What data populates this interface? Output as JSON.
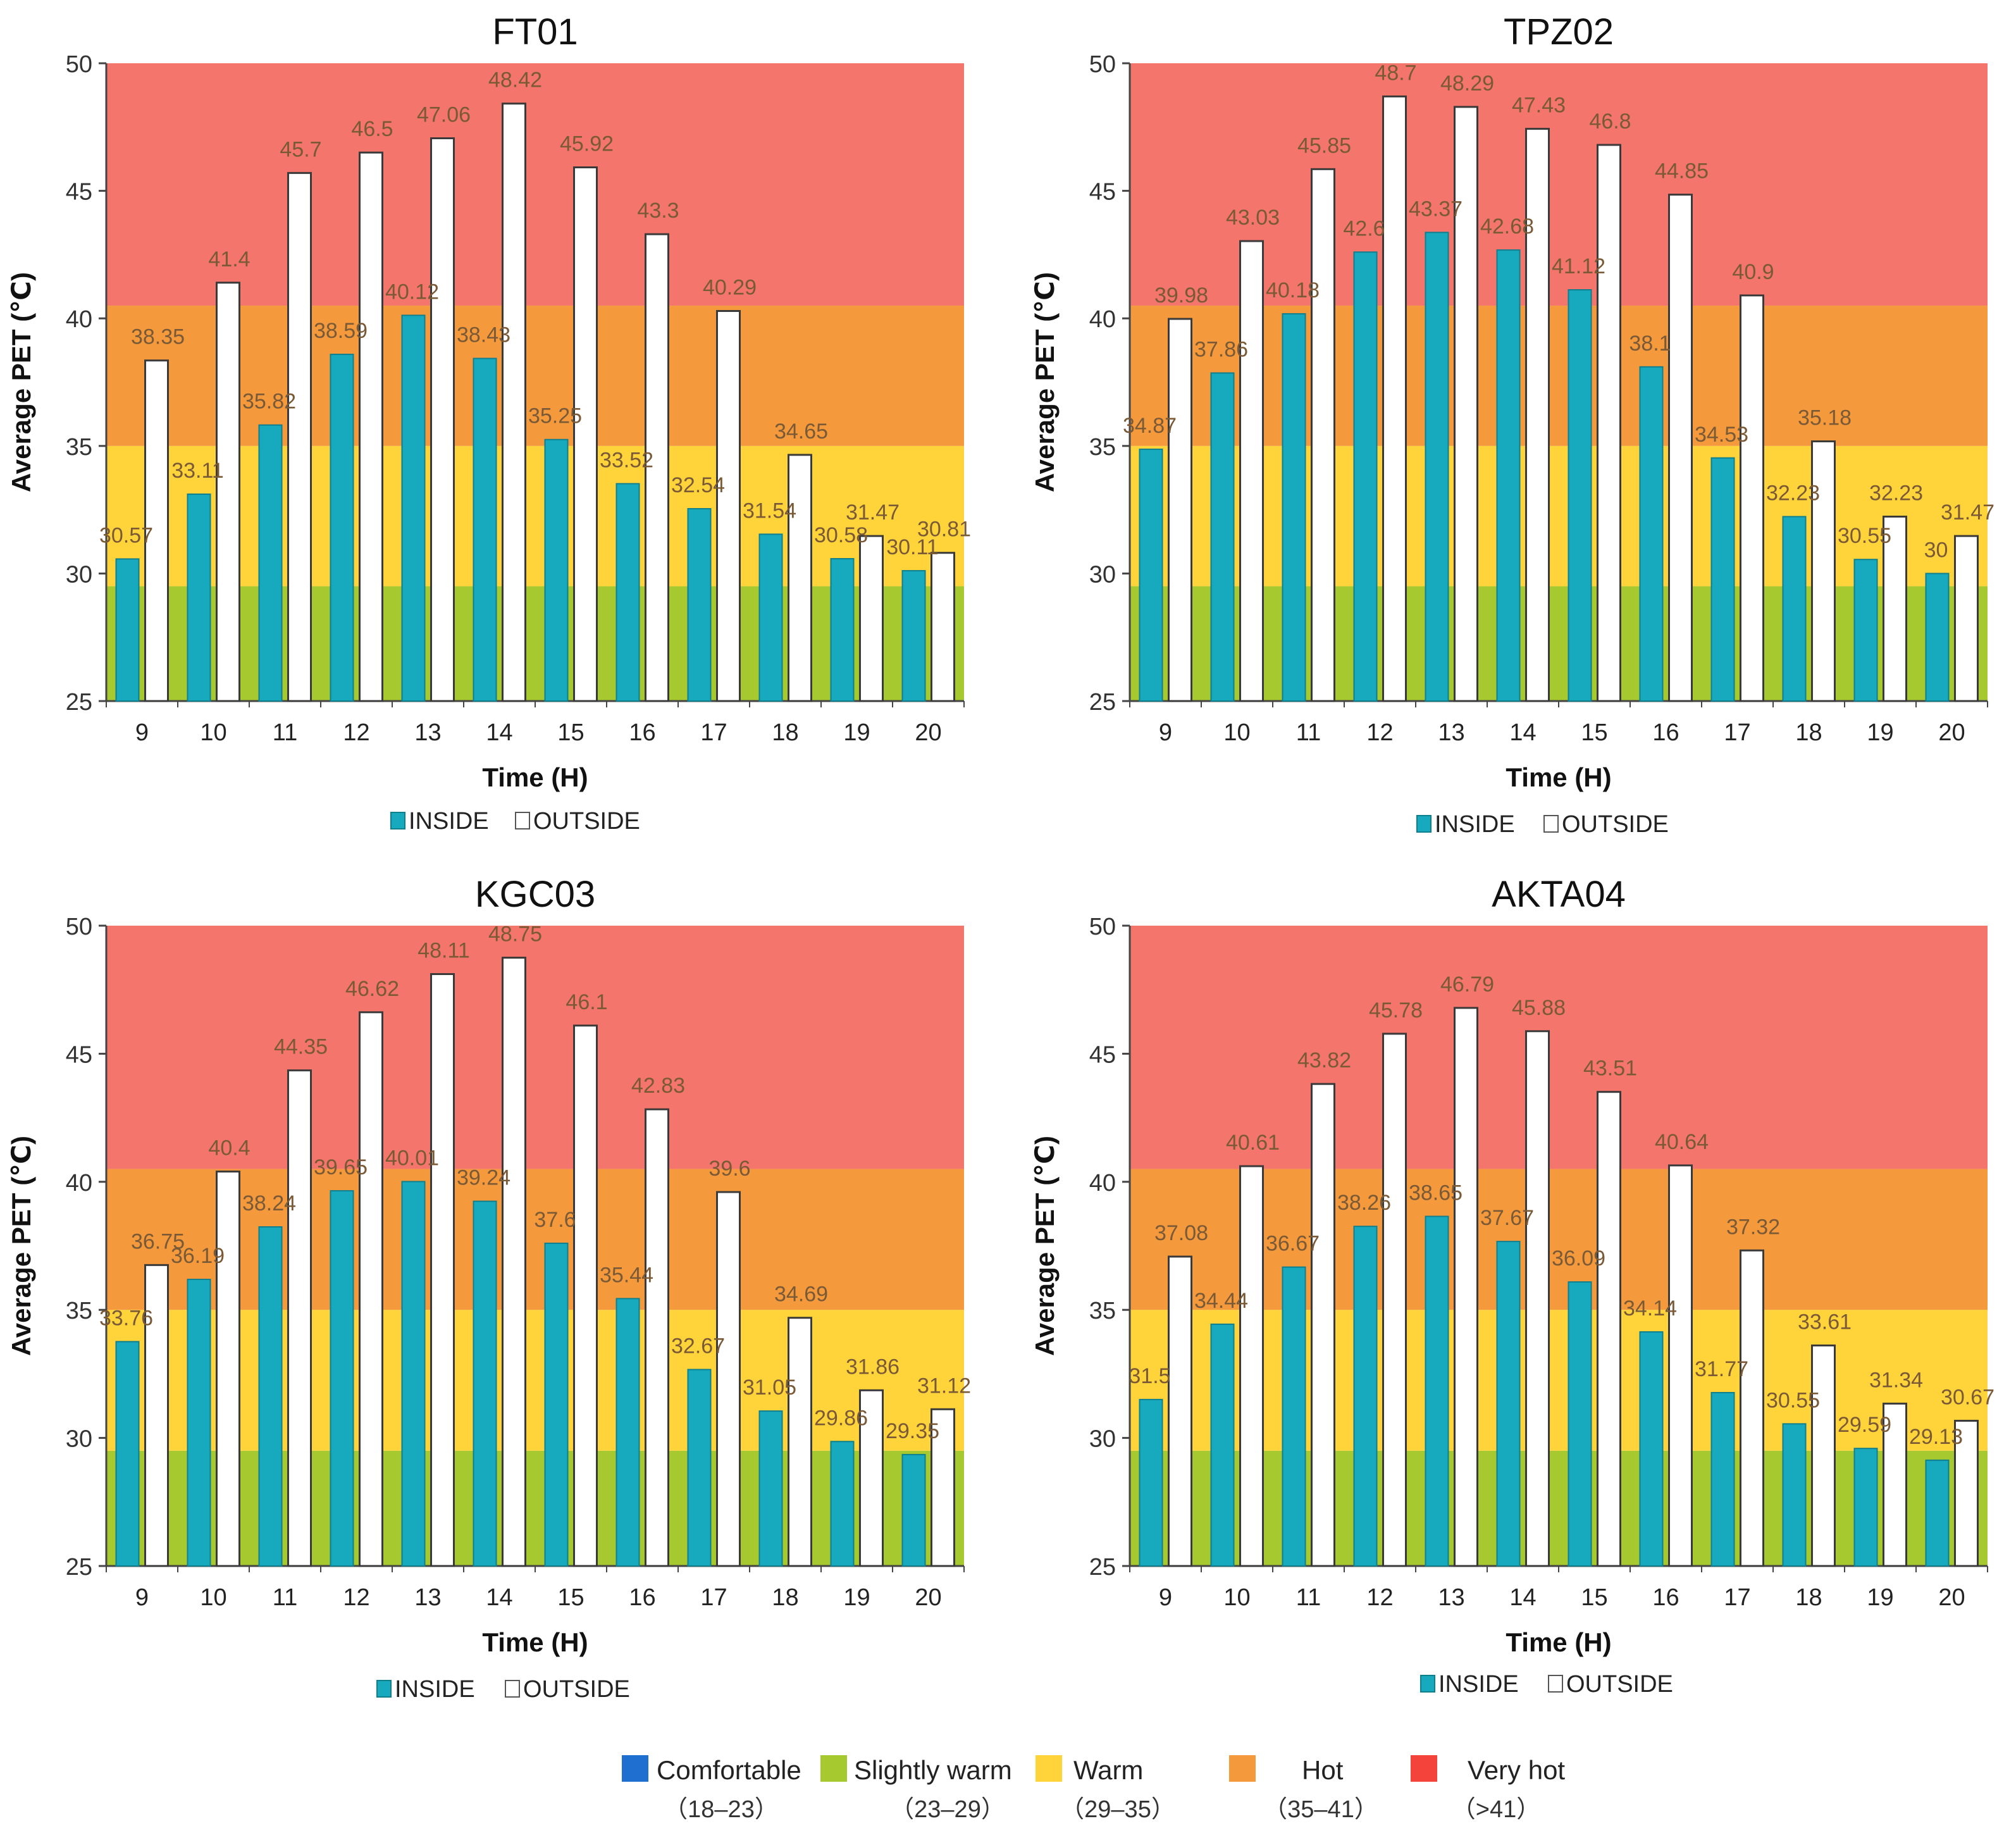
{
  "figure": {
    "comfort_legend": [
      {
        "label": "Comfortable",
        "range": "（18–23）",
        "color": "#1f6fd1"
      },
      {
        "label": "Slightly warm",
        "range": "（23–29）",
        "color": "#a6c930"
      },
      {
        "label": "Warm",
        "range": "（29–35）",
        "color": "#ffd43b"
      },
      {
        "label": "Hot",
        "range": "（35–41）",
        "color": "#f59a3c"
      },
      {
        "label": "Very hot",
        "range": "（>41）",
        "color": "#f4433a"
      }
    ]
  },
  "chart_data": [
    {
      "type": "bar",
      "title": "FT01",
      "xlabel": "Time (H)",
      "ylabel": "Average PET (℃)",
      "ylim": [
        25,
        50
      ],
      "yticks": [
        "25",
        "30",
        "35",
        "40",
        "45",
        "50"
      ],
      "categories": [
        "9",
        "10",
        "11",
        "12",
        "13",
        "14",
        "15",
        "16",
        "17",
        "18",
        "19",
        "20"
      ],
      "series": [
        {
          "name": "INSIDE",
          "color": "#17a9bd",
          "values": [
            30.57,
            33.11,
            35.82,
            38.59,
            40.12,
            38.43,
            35.25,
            33.52,
            32.54,
            31.54,
            30.58,
            30.11
          ],
          "labels": [
            "30.57",
            "33.11",
            "35.82",
            "38.59",
            "40.12",
            "38.43",
            "35.25",
            "33.52",
            "32.54",
            "31.54",
            "30.58",
            "30.11"
          ]
        },
        {
          "name": "OUTSIDE",
          "color": "#ffffff",
          "values": [
            38.35,
            41.4,
            45.7,
            46.5,
            47.06,
            48.42,
            45.92,
            43.3,
            40.29,
            34.65,
            31.47,
            30.81
          ],
          "labels": [
            "38.35",
            "41.4",
            "45.7",
            "46.5",
            "47.06",
            "48.42",
            "45.92",
            "43.3",
            "40.29",
            "34.65",
            "31.47",
            "30.81"
          ]
        }
      ],
      "bands": [
        {
          "name": "Slightly warm",
          "from": 25,
          "to": 29.5,
          "color": "#a6c930"
        },
        {
          "name": "Warm",
          "from": 29.5,
          "to": 35,
          "color": "#ffd43b"
        },
        {
          "name": "Hot",
          "from": 35,
          "to": 40.5,
          "color": "#f59a3c"
        },
        {
          "name": "Very hot",
          "from": 40.5,
          "to": 50,
          "color": "#f4756b"
        }
      ]
    },
    {
      "type": "bar",
      "title": "TPZ02",
      "xlabel": "Time (H)",
      "ylabel": "Average PET (℃)",
      "ylim": [
        25,
        50
      ],
      "yticks": [
        "25",
        "30",
        "35",
        "40",
        "45",
        "50"
      ],
      "categories": [
        "9",
        "10",
        "11",
        "12",
        "13",
        "14",
        "15",
        "16",
        "17",
        "18",
        "19",
        "20"
      ],
      "series": [
        {
          "name": "INSIDE",
          "color": "#17a9bd",
          "values": [
            34.87,
            37.86,
            40.18,
            42.6,
            43.37,
            42.68,
            41.12,
            38.1,
            34.53,
            32.23,
            30.55,
            30
          ],
          "labels": [
            "34.87",
            "37.86",
            "40.18",
            "42.6",
            "43.37",
            "42.68",
            "41.12",
            "38.1",
            "34.53",
            "32.23",
            "30.55",
            "30"
          ]
        },
        {
          "name": "OUTSIDE",
          "color": "#ffffff",
          "values": [
            39.98,
            43.03,
            45.85,
            48.7,
            48.29,
            47.43,
            46.8,
            44.85,
            40.9,
            35.18,
            32.23,
            31.47
          ],
          "labels": [
            "39.98",
            "43.03",
            "45.85",
            "48.7",
            "48.29",
            "47.43",
            "46.8",
            "44.85",
            "40.9",
            "35.18",
            "32.23",
            "31.47"
          ]
        }
      ],
      "bands": [
        {
          "name": "Slightly warm",
          "from": 25,
          "to": 29.5,
          "color": "#a6c930"
        },
        {
          "name": "Warm",
          "from": 29.5,
          "to": 35,
          "color": "#ffd43b"
        },
        {
          "name": "Hot",
          "from": 35,
          "to": 40.5,
          "color": "#f59a3c"
        },
        {
          "name": "Very hot",
          "from": 40.5,
          "to": 50,
          "color": "#f4756b"
        }
      ]
    },
    {
      "type": "bar",
      "title": "KGC03",
      "xlabel": "Time (H)",
      "ylabel": "Average PET (℃)",
      "ylim": [
        25,
        50
      ],
      "yticks": [
        "25",
        "30",
        "35",
        "40",
        "45",
        "50"
      ],
      "categories": [
        "9",
        "10",
        "11",
        "12",
        "13",
        "14",
        "15",
        "16",
        "17",
        "18",
        "19",
        "20"
      ],
      "series": [
        {
          "name": "INSIDE",
          "color": "#17a9bd",
          "values": [
            33.76,
            36.19,
            38.24,
            39.65,
            40.01,
            39.24,
            37.6,
            35.44,
            32.67,
            31.05,
            29.86,
            29.35
          ],
          "labels": [
            "33.76",
            "36.19",
            "38.24",
            "39.65",
            "40.01",
            "39.24",
            "37.6",
            "35.44",
            "32.67",
            "31.05",
            "29.86",
            "29.35"
          ]
        },
        {
          "name": "OUTSIDE",
          "color": "#ffffff",
          "values": [
            36.75,
            40.4,
            44.35,
            46.62,
            48.11,
            48.75,
            46.1,
            42.83,
            39.6,
            34.69,
            31.86,
            31.12
          ],
          "labels": [
            "36.75",
            "40.4",
            "44.35",
            "46.62",
            "48.11",
            "48.75",
            "46.1",
            "42.83",
            "39.6",
            "34.69",
            "31.86",
            "31.12"
          ]
        }
      ],
      "bands": [
        {
          "name": "Slightly warm",
          "from": 25,
          "to": 29.5,
          "color": "#a6c930"
        },
        {
          "name": "Warm",
          "from": 29.5,
          "to": 35,
          "color": "#ffd43b"
        },
        {
          "name": "Hot",
          "from": 35,
          "to": 40.5,
          "color": "#f59a3c"
        },
        {
          "name": "Very hot",
          "from": 40.5,
          "to": 50,
          "color": "#f4756b"
        }
      ]
    },
    {
      "type": "bar",
      "title": "AKTA04",
      "xlabel": "Time (H)",
      "ylabel": "Average PET (℃)",
      "ylim": [
        25,
        50
      ],
      "yticks": [
        "25",
        "30",
        "35",
        "40",
        "45",
        "50"
      ],
      "categories": [
        "9",
        "10",
        "11",
        "12",
        "13",
        "14",
        "15",
        "16",
        "17",
        "18",
        "19",
        "20"
      ],
      "series": [
        {
          "name": "INSIDE",
          "color": "#17a9bd",
          "values": [
            31.5,
            34.44,
            36.67,
            38.26,
            38.65,
            37.67,
            36.09,
            34.14,
            31.77,
            30.55,
            29.59,
            29.13
          ],
          "labels": [
            "31.5",
            "34.44",
            "36.67",
            "38.26",
            "38.65",
            "37.67",
            "36.09",
            "34.14",
            "31.77",
            "30.55",
            "29.59",
            "29.13"
          ]
        },
        {
          "name": "OUTSIDE",
          "color": "#ffffff",
          "values": [
            37.08,
            40.61,
            43.82,
            45.78,
            46.79,
            45.88,
            43.51,
            40.64,
            37.32,
            33.61,
            31.34,
            30.67
          ],
          "labels": [
            "37.08",
            "40.61",
            "43.82",
            "45.78",
            "46.79",
            "45.88",
            "43.51",
            "40.64",
            "37.32",
            "33.61",
            "31.34",
            "30.67"
          ]
        }
      ],
      "bands": [
        {
          "name": "Slightly warm",
          "from": 25,
          "to": 29.5,
          "color": "#a6c930"
        },
        {
          "name": "Warm",
          "from": 29.5,
          "to": 35,
          "color": "#ffd43b"
        },
        {
          "name": "Hot",
          "from": 35,
          "to": 40.5,
          "color": "#f59a3c"
        },
        {
          "name": "Very hot",
          "from": 40.5,
          "to": 50,
          "color": "#f4756b"
        }
      ]
    }
  ]
}
